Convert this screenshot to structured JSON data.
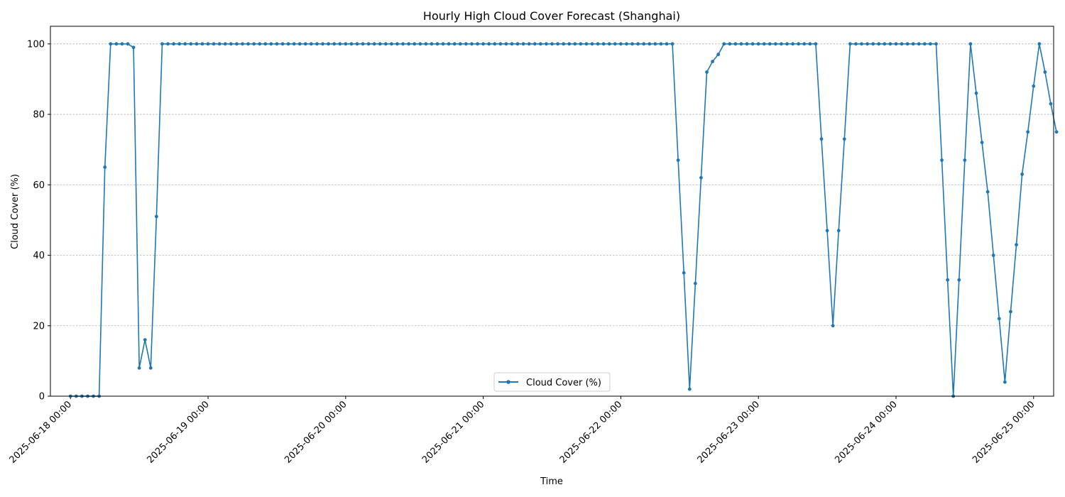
{
  "chart_data": {
    "type": "line",
    "title": "Hourly High Cloud Cover Forecast (Shanghai)",
    "xlabel": "Time",
    "ylabel": "Cloud Cover (%)",
    "x_start": "2025-06-18 00:00",
    "x_step_hours": 1,
    "xlim_hours": [
      -3.5,
      171.5
    ],
    "ylim": [
      0,
      105
    ],
    "yticks": [
      0,
      20,
      40,
      60,
      80,
      100
    ],
    "xtick_hours": [
      0,
      24,
      48,
      72,
      96,
      120,
      144,
      168
    ],
    "xticks": [
      "2025-06-18 00:00",
      "2025-06-19 00:00",
      "2025-06-20 00:00",
      "2025-06-21 00:00",
      "2025-06-22 00:00",
      "2025-06-23 00:00",
      "2025-06-24 00:00",
      "2025-06-25 00:00"
    ],
    "grid": "y-dashed",
    "legend_position": "bottom-center",
    "series": [
      {
        "name": "Cloud Cover (%)",
        "color": "#1f77b4",
        "values": [
          0,
          0,
          0,
          0,
          0,
          0,
          65,
          100,
          100,
          100,
          100,
          99,
          8,
          16,
          8,
          51,
          100,
          100,
          100,
          100,
          100,
          100,
          100,
          100,
          100,
          100,
          100,
          100,
          100,
          100,
          100,
          100,
          100,
          100,
          100,
          100,
          100,
          100,
          100,
          100,
          100,
          100,
          100,
          100,
          100,
          100,
          100,
          100,
          100,
          100,
          100,
          100,
          100,
          100,
          100,
          100,
          100,
          100,
          100,
          100,
          100,
          100,
          100,
          100,
          100,
          100,
          100,
          100,
          100,
          100,
          100,
          100,
          100,
          100,
          100,
          100,
          100,
          100,
          100,
          100,
          100,
          100,
          100,
          100,
          100,
          100,
          100,
          100,
          100,
          100,
          100,
          100,
          100,
          100,
          100,
          100,
          100,
          100,
          100,
          100,
          100,
          100,
          100,
          100,
          100,
          100,
          67,
          35,
          2,
          32,
          62,
          92,
          95,
          97,
          100,
          100,
          100,
          100,
          100,
          100,
          100,
          100,
          100,
          100,
          100,
          100,
          100,
          100,
          100,
          100,
          100,
          73,
          47,
          20,
          47,
          73,
          100,
          100,
          100,
          100,
          100,
          100,
          100,
          100,
          100,
          100,
          100,
          100,
          100,
          100,
          100,
          100,
          67,
          33,
          0,
          33,
          67,
          100,
          86,
          72,
          58,
          40,
          22,
          4,
          24,
          43,
          63,
          75,
          88,
          100,
          92,
          83,
          75
        ]
      }
    ]
  }
}
